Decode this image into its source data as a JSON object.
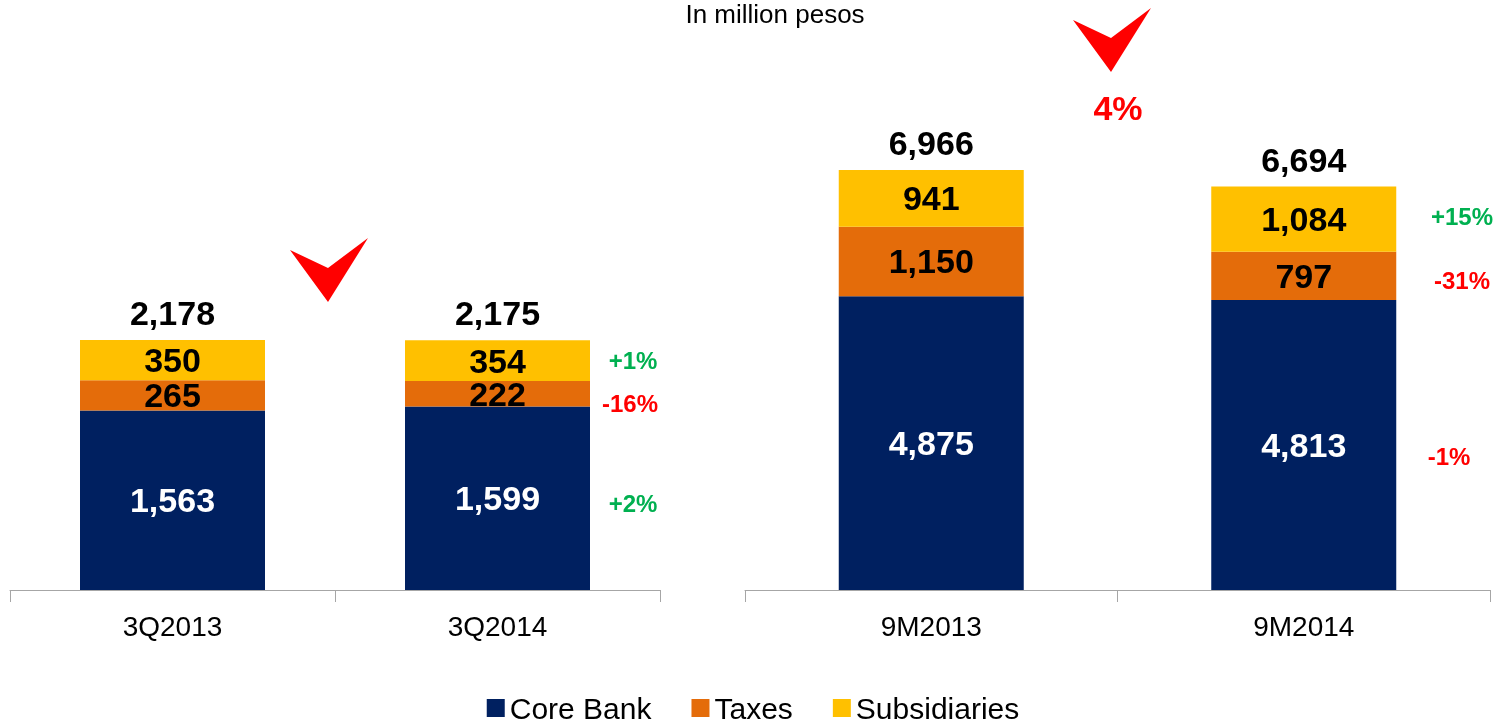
{
  "chart_data": [
    {
      "type": "bar",
      "categories": [
        "3Q2013",
        "3Q2014"
      ],
      "stacked": true,
      "legend": "bottom",
      "totals": [
        "2,178",
        "2,175"
      ],
      "series": [
        {
          "name": "Core Bank",
          "color": "#002060",
          "values": [
            1563,
            1599
          ],
          "value_labels": [
            "1,563",
            "1,599"
          ]
        },
        {
          "name": "Taxes",
          "color": "#e46c0a",
          "values": [
            265,
            222
          ],
          "value_labels": [
            "265",
            "222"
          ]
        },
        {
          "name": "Subsidiaries",
          "color": "#ffc000",
          "values": [
            350,
            354
          ],
          "value_labels": [
            "350",
            "354"
          ]
        }
      ],
      "annotations": [
        "+1%",
        "-16%",
        "+2%"
      ]
    },
    {
      "type": "bar",
      "title": "In million pesos",
      "categories": [
        "9M2013",
        "9M2014"
      ],
      "stacked": true,
      "totals": [
        "6,966",
        "6,694"
      ],
      "series": [
        {
          "color": "#002060",
          "values": [
            4875,
            4813
          ],
          "value_labels": [
            "4,875",
            "4,813"
          ]
        },
        {
          "color": "#e46c0a",
          "values": [
            1150,
            797
          ],
          "value_labels": [
            "1,150",
            "797"
          ]
        },
        {
          "color": "#ffc000",
          "values": [
            941,
            1084
          ],
          "value_labels": [
            "941",
            "1,084"
          ]
        }
      ],
      "annotations": [
        "+15%",
        "-31%",
        "-1%",
        "4%"
      ]
    }
  ]
}
